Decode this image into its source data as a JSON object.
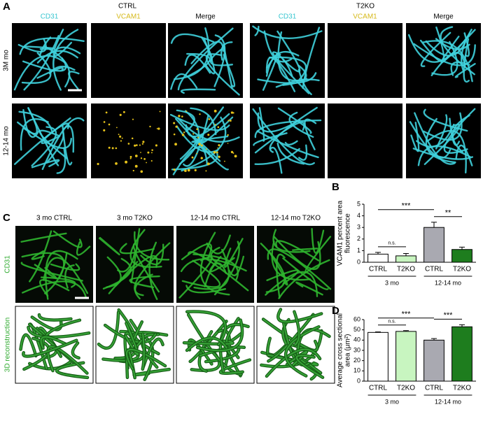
{
  "panel_a": {
    "label": "A",
    "groups": [
      {
        "title": "CTRL",
        "channels": [
          "CD31",
          "VCAM1",
          "Merge"
        ]
      },
      {
        "title": "T2KO",
        "channels": [
          "CD31",
          "VCAM1",
          "Merge"
        ]
      }
    ],
    "rows": [
      "3M mo",
      "12-14 mo"
    ]
  },
  "panel_c": {
    "label": "C",
    "columns": [
      "3 mo CTRL",
      "3 mo T2KO",
      "12-14 mo CTRL",
      "12-14 mo T2KO"
    ],
    "rows": [
      "CD31",
      "3D reconstruction"
    ]
  },
  "chart_data": [
    {
      "type": "bar",
      "panel_label": "B",
      "ylabel": [
        "VCAM1 percent area",
        "fluorescence"
      ],
      "categories": [
        "CTRL",
        "T2KO",
        "CTRL",
        "T2KO"
      ],
      "group_labels": [
        "3 mo",
        "12-14 mo"
      ],
      "values": [
        0.7,
        0.55,
        3.0,
        1.1
      ],
      "errors": [
        0.15,
        0.2,
        0.45,
        0.2
      ],
      "colors": [
        "#ffffff",
        "#c8f5c0",
        "#a9a9b1",
        "#1e7d1e"
      ],
      "ylim": [
        0,
        5
      ],
      "yticks": [
        0,
        1,
        2,
        3,
        4,
        5
      ],
      "comparisons": [
        {
          "label": "***",
          "from": 0,
          "to": 2
        },
        {
          "label": "**",
          "from": 2,
          "to": 3
        },
        {
          "label": "n.s.",
          "from": 0,
          "to": 1
        }
      ]
    },
    {
      "type": "bar",
      "panel_label": "D",
      "ylabel": [
        "Average cross sectional",
        "area (μm²)"
      ],
      "categories": [
        "CTRL",
        "T2KO",
        "CTRL",
        "T2KO"
      ],
      "group_labels": [
        "3 mo",
        "12-14 mo"
      ],
      "values": [
        47.5,
        48.5,
        40,
        53
      ],
      "errors": [
        0.5,
        0.8,
        1.5,
        2
      ],
      "colors": [
        "#ffffff",
        "#c8f5c0",
        "#a9a9b1",
        "#1e7d1e"
      ],
      "ylim": [
        0,
        60
      ],
      "yticks": [
        0,
        10,
        20,
        30,
        40,
        50,
        60
      ],
      "comparisons": [
        {
          "label": "***",
          "from": 0,
          "to": 2
        },
        {
          "label": "***",
          "from": 2,
          "to": 3
        },
        {
          "label": "n.s.",
          "from": 0,
          "to": 1
        }
      ]
    }
  ]
}
